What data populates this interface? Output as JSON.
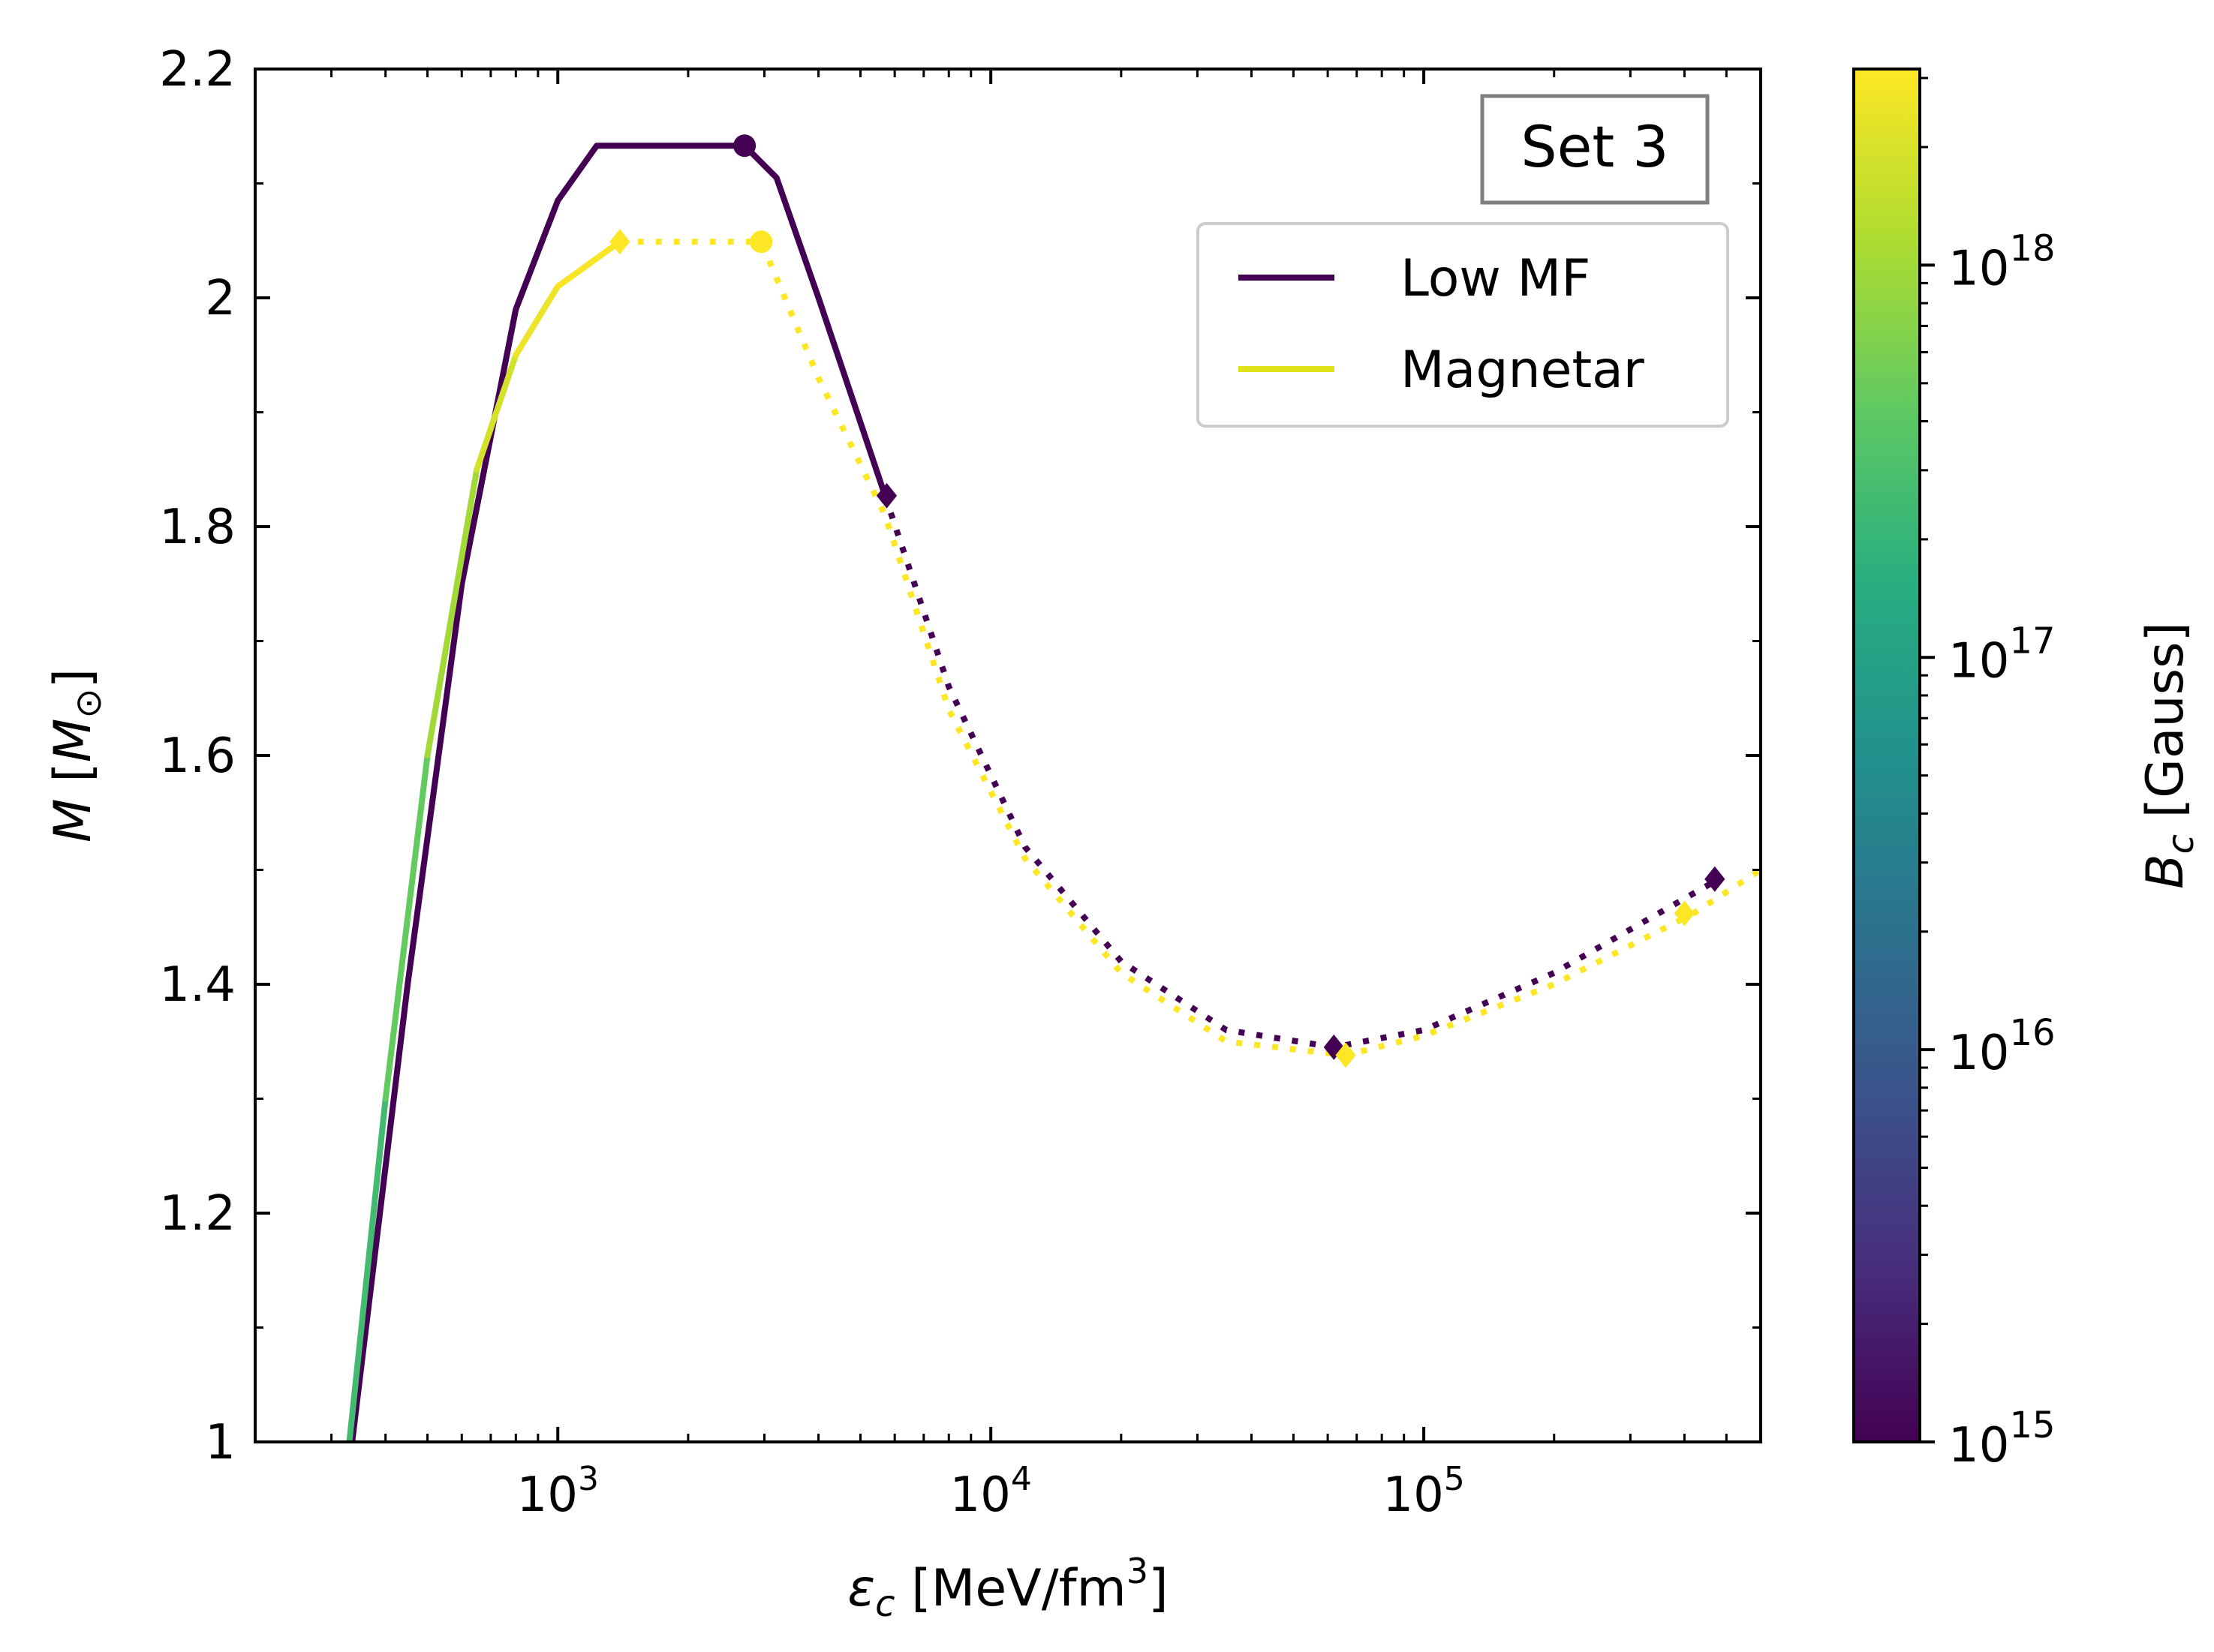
{
  "chart_data": {
    "type": "line",
    "annotation": "Set 3",
    "xlabel_symbol": "ε",
    "xlabel_sub": "c",
    "xlabel_unit": " [MeV/fm",
    "xlabel_unit_sup": "3",
    "xlabel_close": "]",
    "ylabel_symbol": "M",
    "ylabel_unit_open": " [",
    "ylabel_unit_M": "M",
    "ylabel_unit_sub": "⊙",
    "ylabel_close": "]",
    "xscale": "log",
    "xlim": [
      200,
      600000
    ],
    "ylim": [
      1.0,
      2.2
    ],
    "yticks": [
      {
        "value": 1.0,
        "label": "1"
      },
      {
        "value": 1.2,
        "label": "1.2"
      },
      {
        "value": 1.4,
        "label": "1.4"
      },
      {
        "value": 1.6,
        "label": "1.6"
      },
      {
        "value": 1.8,
        "label": "1.8"
      },
      {
        "value": 2.0,
        "label": "2"
      },
      {
        "value": 2.2,
        "label": "2.2"
      }
    ],
    "xticks": [
      {
        "value": 1000,
        "base": "10",
        "exp": "3"
      },
      {
        "value": 10000,
        "base": "10",
        "exp": "4"
      },
      {
        "value": 100000,
        "base": "10",
        "exp": "5"
      }
    ],
    "legend": {
      "placement": "upper-right",
      "entries": [
        {
          "label": "Low MF",
          "color": "#440154"
        },
        {
          "label": "Magnetar",
          "color": "#dde318"
        }
      ]
    },
    "colorbar": {
      "label_symbol": "B",
      "label_sub": "c",
      "label_unit": " [Gauss]",
      "scale": "log",
      "range_exp": [
        15,
        18.5
      ],
      "ticks": [
        {
          "exp": 15,
          "base": "10",
          "sup": "15"
        },
        {
          "exp": 16,
          "base": "10",
          "sup": "16"
        },
        {
          "exp": 17,
          "base": "10",
          "sup": "17"
        },
        {
          "exp": 18,
          "base": "10",
          "sup": "18"
        }
      ],
      "colormap": "viridis",
      "stops": [
        "#440154",
        "#472d7b",
        "#3b528b",
        "#2c728e",
        "#21918c",
        "#28ae80",
        "#5ec962",
        "#addc30",
        "#fde725"
      ]
    },
    "series": [
      {
        "name": "Low MF",
        "color": "#440154",
        "solid": [
          [
            335,
            1.0
          ],
          [
            450,
            1.4
          ],
          [
            600,
            1.75
          ],
          [
            800,
            1.99
          ],
          [
            1000,
            2.085
          ],
          [
            1230,
            2.133
          ],
          [
            2700,
            2.133
          ],
          [
            3200,
            2.105
          ],
          [
            4000,
            2.0
          ],
          [
            5700,
            1.827
          ]
        ],
        "dotted": [
          [
            5700,
            1.827
          ],
          [
            8000,
            1.66
          ],
          [
            12000,
            1.52
          ],
          [
            20000,
            1.42
          ],
          [
            35000,
            1.36
          ],
          [
            62000,
            1.345
          ],
          [
            100000,
            1.36
          ],
          [
            200000,
            1.41
          ],
          [
            470000,
            1.49
          ]
        ],
        "markers": [
          {
            "x": 2700,
            "y": 2.133,
            "shape": "circle"
          },
          {
            "x": 5750,
            "y": 1.827,
            "shape": "diamond"
          },
          {
            "x": 62000,
            "y": 1.345,
            "shape": "diamond"
          },
          {
            "x": 470000,
            "y": 1.492,
            "shape": "diamond"
          }
        ]
      },
      {
        "name": "Magnetar",
        "color": "#fde725",
        "solid": [
          [
            330,
            1.0
          ],
          [
            400,
            1.3
          ],
          [
            500,
            1.6
          ],
          [
            650,
            1.85
          ],
          [
            800,
            1.95
          ],
          [
            1000,
            2.01
          ],
          [
            1390,
            2.049
          ]
        ],
        "solid_bc_exp": [
          17.3,
          17.5,
          17.8,
          18.2,
          18.35,
          18.45,
          18.5
        ],
        "dotted": [
          [
            1390,
            2.049
          ],
          [
            2950,
            2.049
          ],
          [
            4000,
            1.93
          ],
          [
            5700,
            1.81
          ],
          [
            8000,
            1.64
          ],
          [
            12000,
            1.51
          ],
          [
            20000,
            1.41
          ],
          [
            35000,
            1.35
          ],
          [
            66000,
            1.338
          ],
          [
            100000,
            1.355
          ],
          [
            200000,
            1.4
          ],
          [
            420000,
            1.462
          ],
          [
            600000,
            1.5
          ]
        ],
        "markers": [
          {
            "x": 1390,
            "y": 2.049,
            "shape": "diamond"
          },
          {
            "x": 2950,
            "y": 2.049,
            "shape": "circle"
          },
          {
            "x": 66000,
            "y": 1.338,
            "shape": "diamond"
          },
          {
            "x": 400000,
            "y": 1.462,
            "shape": "diamond"
          }
        ]
      }
    ]
  }
}
